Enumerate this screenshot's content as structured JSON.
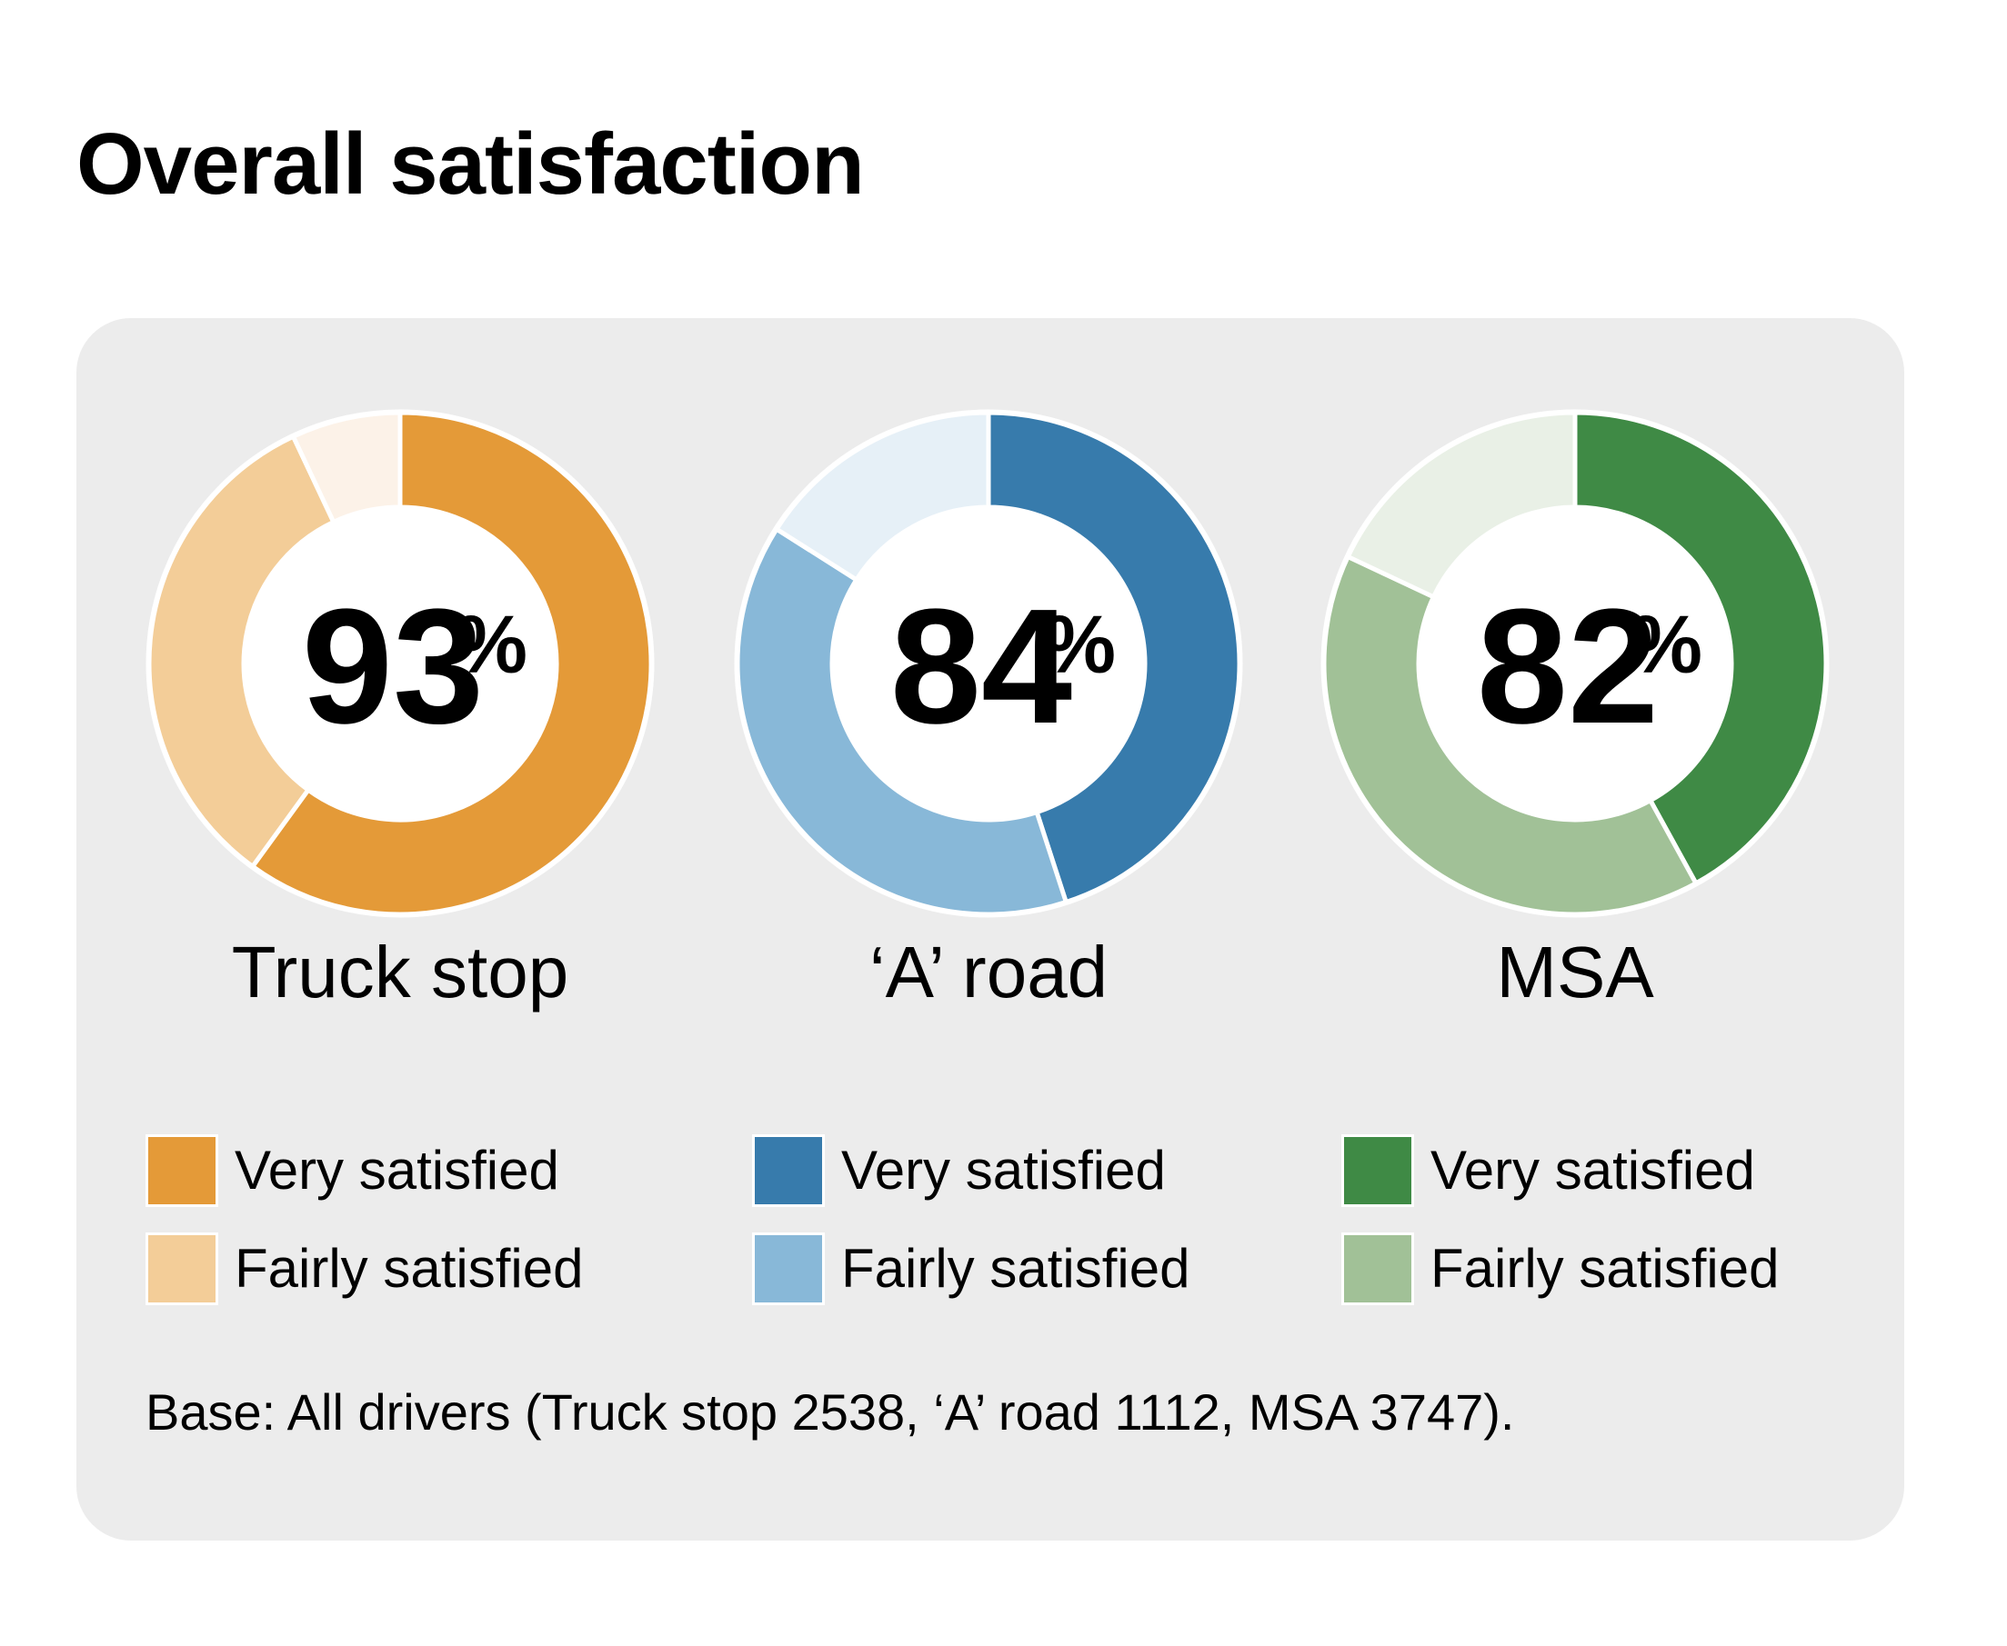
{
  "title": "Overall satisfaction",
  "footnote": "Base: All drivers (Truck stop 2538, ‘A’ road 1112, MSA 3747).",
  "chart_data": [
    {
      "type": "pie",
      "label": "Truck stop",
      "total": "93",
      "percent_sign": "%",
      "colors": {
        "very": "#e49a38",
        "fairly": "#f3cd98",
        "rest": "#fcf2e8"
      },
      "legend": [
        {
          "label": "Very satisfied",
          "color": "#e49a38"
        },
        {
          "label": "Fairly satisfied",
          "color": "#f3cd98"
        }
      ],
      "series": [
        {
          "name": "Very satisfied",
          "value": 60
        },
        {
          "name": "Fairly satisfied",
          "value": 33
        },
        {
          "value": 7
        }
      ]
    },
    {
      "type": "pie",
      "label": "‘A’ road",
      "total": "84",
      "percent_sign": "%",
      "colors": {
        "very": "#377bac",
        "fairly": "#88b8d8",
        "rest": "#e6f0f7"
      },
      "legend": [
        {
          "label": "Very satisfied",
          "color": "#377bac"
        },
        {
          "label": "Fairly satisfied",
          "color": "#88b8d8"
        }
      ],
      "series": [
        {
          "name": "Very satisfied",
          "value": 45
        },
        {
          "name": "Fairly satisfied",
          "value": 39
        },
        {
          "value": 16
        }
      ]
    },
    {
      "type": "pie",
      "label": "MSA",
      "total": "82",
      "percent_sign": "%",
      "colors": {
        "very": "#3f8a45",
        "fairly": "#a1c197",
        "rest": "#e9f0e6"
      },
      "legend": [
        {
          "label": "Very satisfied",
          "color": "#3f8a45"
        },
        {
          "label": "Fairly satisfied",
          "color": "#a1c197"
        }
      ],
      "series": [
        {
          "name": "Very satisfied",
          "value": 42
        },
        {
          "name": "Fairly satisfied",
          "value": 40
        },
        {
          "value": 18
        }
      ]
    }
  ]
}
